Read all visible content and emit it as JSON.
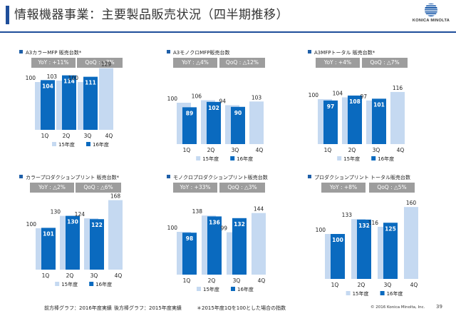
{
  "header": {
    "title": "情報機器事業：主要製品販売状況（四半期推移）",
    "logo_text": "KONICA MINOLTA",
    "logo_icon": "konica-minolta-globe-icon"
  },
  "footer": {
    "note_front": "前方棒グラフ：2016年度実績",
    "note_back": "後方棒グラフ：2015年度実績",
    "note_index": "＊2015年度1Qを100とした場合の指数",
    "copyright": "© 2016 Konica Minolta, Inc.",
    "page_number": "39"
  },
  "colors": {
    "fy2015": "#c5d9f1",
    "fy2016": "#0a6abf",
    "pill": "#9d9d9d",
    "accent": "#1f4e9a"
  },
  "chart_data": [
    {
      "type": "bar",
      "title": "A3カラーMFP 販売台数*",
      "yoy": "YoY : +11%",
      "qoq": "QoQ : △3%",
      "categories": [
        "1Q",
        "2Q",
        "3Q",
        "4Q"
      ],
      "series": [
        {
          "name": "15年度",
          "values": [
            100,
            103,
            100,
            129
          ]
        },
        {
          "name": "16年度",
          "values": [
            104,
            114,
            111,
            null
          ]
        }
      ]
    },
    {
      "type": "bar",
      "title": "A3モノクロMFP販売台数",
      "yoy": "YoY : △4%",
      "qoq": "QoQ : △12%",
      "categories": [
        "1Q",
        "2Q",
        "3Q",
        "4Q"
      ],
      "series": [
        {
          "name": "15年度",
          "values": [
            100,
            106,
            94,
            103
          ]
        },
        {
          "name": "16年度",
          "values": [
            89,
            102,
            90,
            null
          ]
        }
      ]
    },
    {
      "type": "bar",
      "title": "A3MFPトータル 販売台数*",
      "yoy": "YoY : +4%",
      "qoq": "QoQ : △7%",
      "categories": [
        "1Q",
        "2Q",
        "3Q",
        "4Q"
      ],
      "series": [
        {
          "name": "15年度",
          "values": [
            100,
            104,
            97,
            116
          ]
        },
        {
          "name": "16年度",
          "values": [
            97,
            108,
            101,
            null
          ]
        }
      ]
    },
    {
      "type": "bar",
      "title": "カラープロダクションプリント 販売台数*",
      "yoy": "YoY : △2%",
      "qoq": "QoQ : △6%",
      "categories": [
        "1Q",
        "2Q",
        "3Q",
        "4Q"
      ],
      "series": [
        {
          "name": "15年度",
          "values": [
            100,
            130,
            124,
            168
          ]
        },
        {
          "name": "16年度",
          "values": [
            101,
            130,
            122,
            null
          ]
        }
      ]
    },
    {
      "type": "bar",
      "title": "モノクロプロダクションプリント販売台数",
      "yoy": "YoY : +33%",
      "qoq": "QoQ : △3%",
      "categories": [
        "1Q",
        "2Q",
        "3Q",
        "4Q"
      ],
      "series": [
        {
          "name": "15年度",
          "values": [
            100,
            138,
            99,
            144
          ]
        },
        {
          "name": "16年度",
          "values": [
            98,
            136,
            132,
            null
          ]
        }
      ]
    },
    {
      "type": "bar",
      "title": "プロダクションプリント トータル販売台数",
      "yoy": "YoY : +8%",
      "qoq": "QoQ : △5%",
      "categories": [
        "1Q",
        "2Q",
        "3Q",
        "4Q"
      ],
      "series": [
        {
          "name": "15年度",
          "values": [
            100,
            133,
            116,
            160
          ]
        },
        {
          "name": "16年度",
          "values": [
            100,
            132,
            125,
            null
          ]
        }
      ]
    }
  ]
}
